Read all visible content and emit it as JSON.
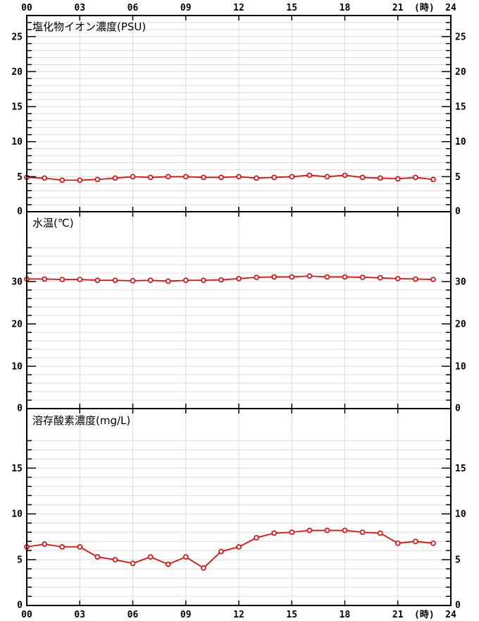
{
  "colors": {
    "line": "#ee0000",
    "marker_fill": "#ffffff",
    "grid": "#dcdcdc",
    "border": "#000000",
    "background": "#ffffff",
    "text": "#000000"
  },
  "x_axis": {
    "range": [
      0,
      24
    ],
    "gridline_hours": [
      3,
      6,
      9,
      12,
      15,
      18,
      21
    ],
    "labels": [
      {
        "text": "00",
        "h": 0
      },
      {
        "text": "03",
        "h": 3
      },
      {
        "text": "06",
        "h": 6
      },
      {
        "text": "09",
        "h": 9
      },
      {
        "text": "12",
        "h": 12
      },
      {
        "text": "15",
        "h": 15
      },
      {
        "text": "18",
        "h": 18
      },
      {
        "text": "21",
        "h": 21
      },
      {
        "text": "24",
        "h": 24
      }
    ],
    "unit_label": "(時)",
    "unit_h": 22.5,
    "shown_top_and_bottom": true
  },
  "chart_data": [
    {
      "type": "line",
      "title": "塩化物イオン濃度(PSU)",
      "series_name": "塩化物イオン濃度",
      "x": [
        0,
        1,
        2,
        3,
        4,
        5,
        6,
        7,
        8,
        9,
        10,
        11,
        12,
        13,
        14,
        15,
        16,
        17,
        18,
        19,
        20,
        21,
        22,
        23
      ],
      "values": [
        4.9,
        4.8,
        4.5,
        4.5,
        4.6,
        4.8,
        5.0,
        4.9,
        5.0,
        5.0,
        4.9,
        4.9,
        5.0,
        4.8,
        4.9,
        5.0,
        5.2,
        5.0,
        5.2,
        4.9,
        4.8,
        4.7,
        4.9,
        4.6
      ],
      "ylim": [
        0,
        28
      ],
      "yticks_major": [
        0,
        5,
        10,
        15,
        20,
        25
      ],
      "ytick_minor_step": 1,
      "ytick_top": 27,
      "grid": true,
      "legend": "none"
    },
    {
      "type": "line",
      "title": "水温(℃)",
      "series_name": "水温",
      "x": [
        0,
        1,
        2,
        3,
        4,
        5,
        6,
        7,
        8,
        9,
        10,
        11,
        12,
        13,
        14,
        15,
        16,
        17,
        18,
        19,
        20,
        21,
        22,
        23
      ],
      "values": [
        30.6,
        30.6,
        30.5,
        30.5,
        30.3,
        30.3,
        30.2,
        30.3,
        30.1,
        30.3,
        30.3,
        30.4,
        30.7,
        31.0,
        31.1,
        31.1,
        31.3,
        31.1,
        31.1,
        31.0,
        30.9,
        30.7,
        30.6,
        30.5
      ],
      "ylim": [
        0,
        46.5
      ],
      "yticks_major": [
        0,
        10,
        20,
        30
      ],
      "ytick_minor_step": 2,
      "ytick_top": 38,
      "grid": true,
      "legend": "none"
    },
    {
      "type": "line",
      "title": "溶存酸素濃度(mg/L)",
      "series_name": "溶存酸素濃度",
      "x": [
        0,
        1,
        2,
        3,
        4,
        5,
        6,
        7,
        8,
        9,
        10,
        11,
        12,
        13,
        14,
        15,
        16,
        17,
        18,
        19,
        20,
        21,
        22,
        23
      ],
      "values": [
        6.4,
        6.7,
        6.4,
        6.4,
        5.3,
        5.0,
        4.6,
        5.3,
        4.5,
        5.3,
        4.1,
        5.9,
        6.4,
        7.4,
        7.9,
        8.0,
        8.2,
        8.2,
        8.2,
        8.0,
        7.9,
        6.8,
        7.0,
        6.8
      ],
      "ylim": [
        0,
        21.5
      ],
      "yticks_major": [
        0,
        5,
        10,
        15
      ],
      "ytick_minor_step": 1,
      "ytick_top": 18,
      "grid": true,
      "legend": "none"
    }
  ]
}
